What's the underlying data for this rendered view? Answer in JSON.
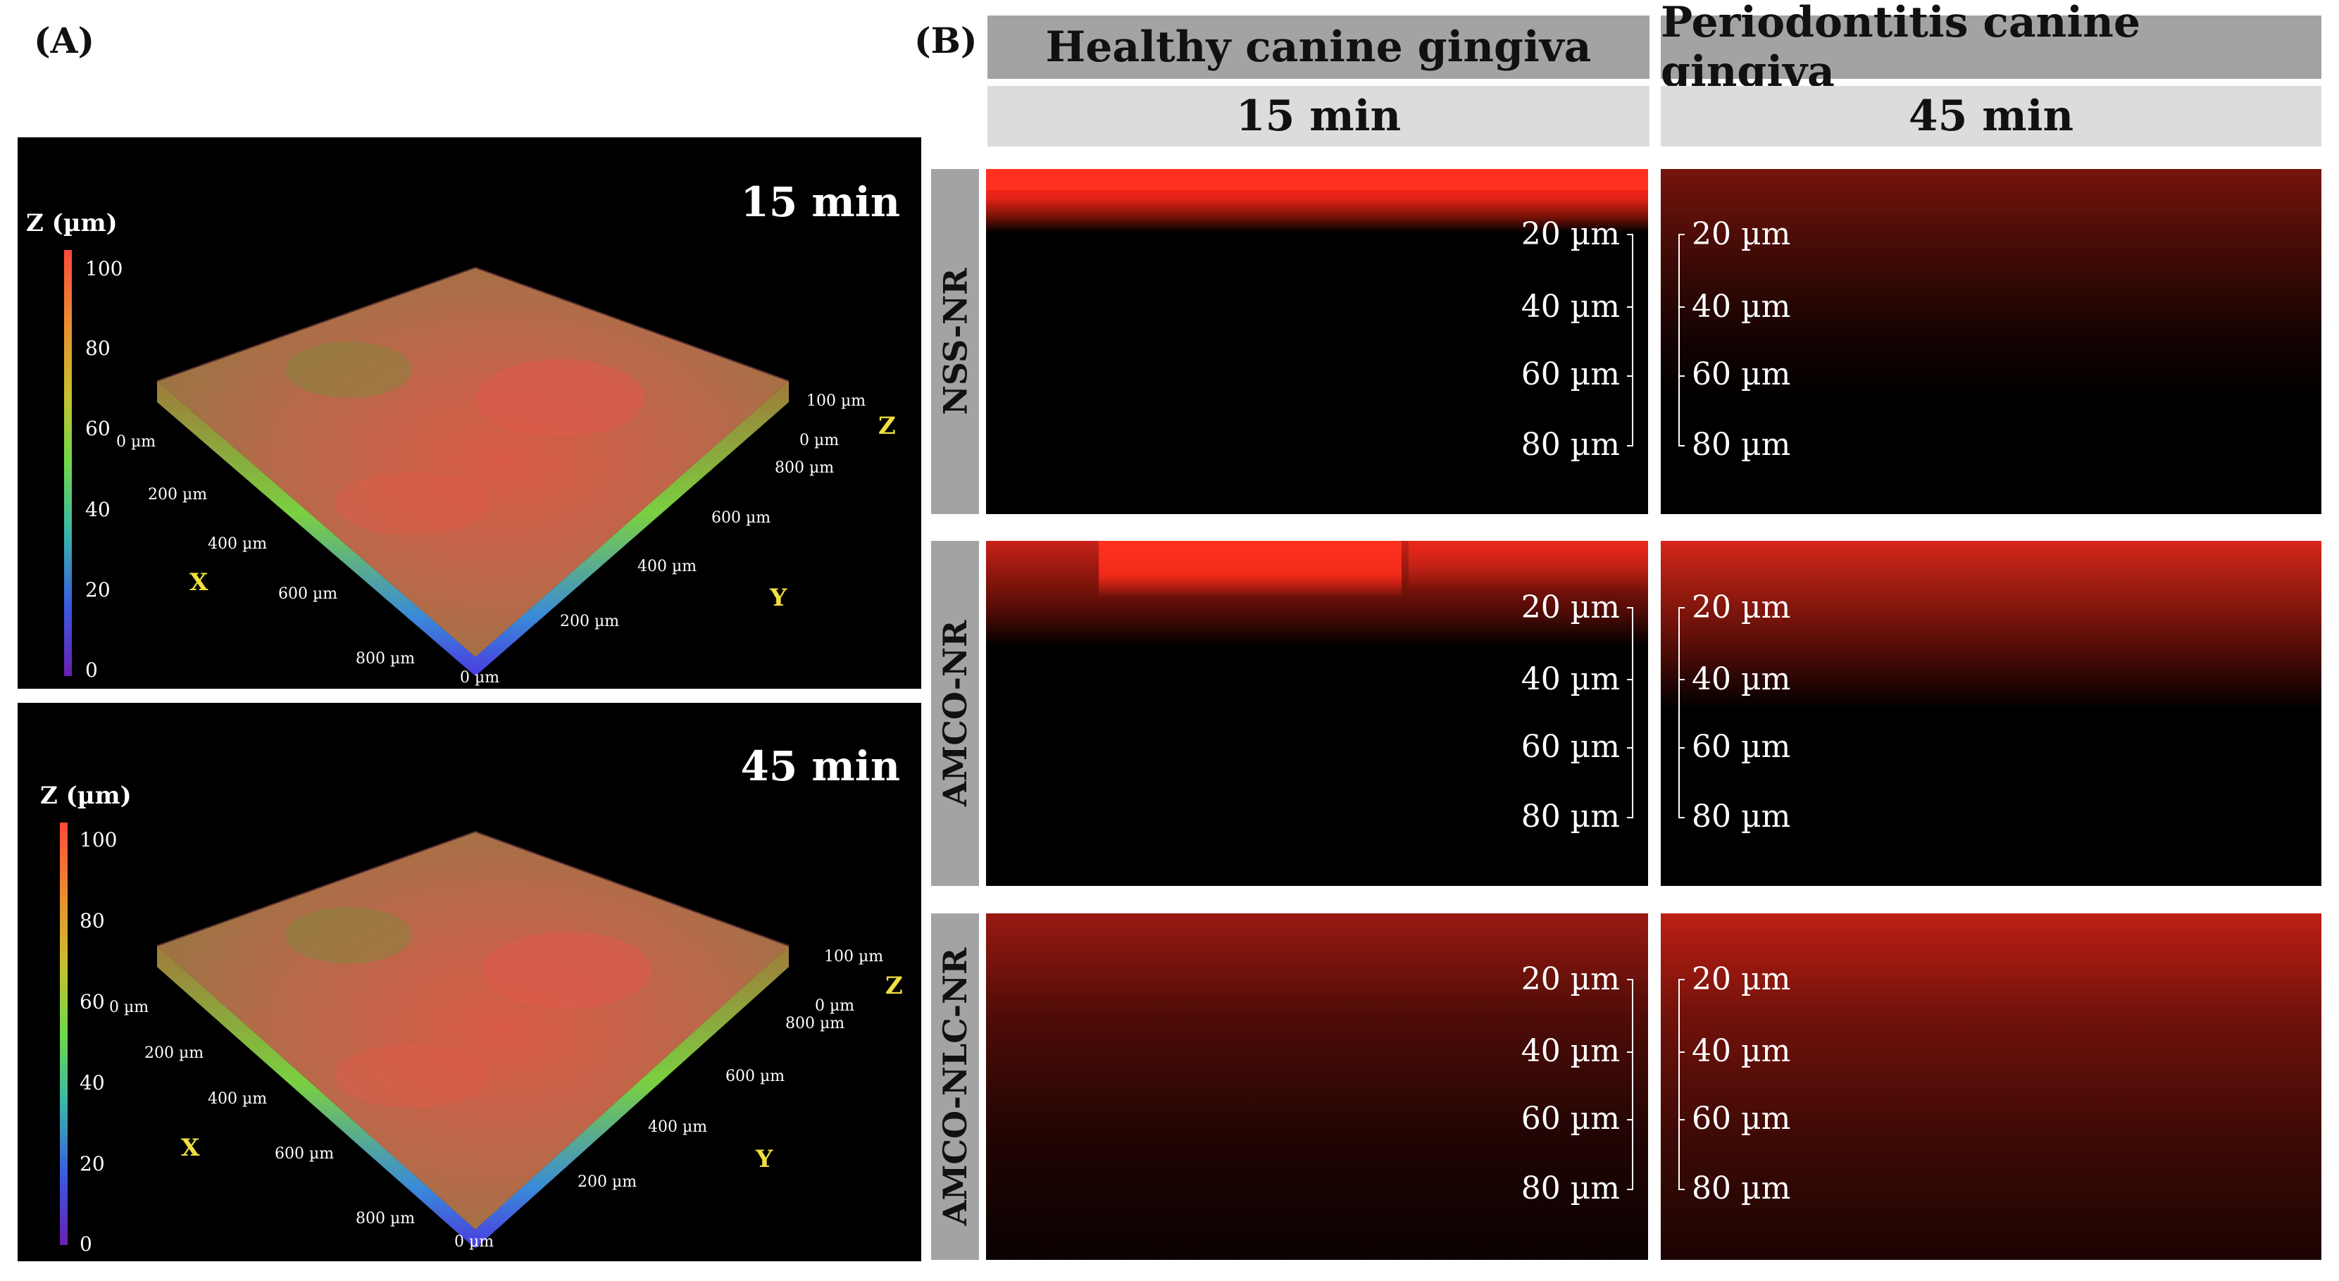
{
  "panelA": {
    "label": "(A)",
    "views": [
      {
        "time": "15 min",
        "colorbar_title": "Z (µm)",
        "colorbar_ticks": [
          "100",
          "80",
          "60",
          "40",
          "20",
          "0"
        ],
        "x_ticks": [
          "0 µm",
          "200 µm",
          "400 µm",
          "600 µm",
          "800 µm"
        ],
        "y_ticks": [
          "0 µm",
          "200 µm",
          "400 µm",
          "600 µm",
          "800 µm"
        ],
        "z_ticks": [
          "100 µm",
          "0 µm"
        ],
        "x_label": "X",
        "y_label": "Y",
        "z_label": "Z"
      },
      {
        "time": "45 min",
        "colorbar_title": "Z (µm)",
        "colorbar_ticks": [
          "100",
          "80",
          "60",
          "40",
          "20",
          "0"
        ],
        "x_ticks": [
          "0 µm",
          "200 µm",
          "400 µm",
          "600 µm",
          "800 µm"
        ],
        "y_ticks": [
          "0 µm",
          "200 µm",
          "400 µm",
          "600 µm",
          "800 µm"
        ],
        "z_ticks": [
          "100 µm",
          "0 µm"
        ],
        "x_label": "X",
        "y_label": "Y",
        "z_label": "Z"
      }
    ]
  },
  "panelB": {
    "label": "(B)",
    "columns": [
      {
        "tissue": "Healthy canine gingiva",
        "time": "15 min"
      },
      {
        "tissue": "Periodontitis canine gingiva",
        "time": "45 min"
      }
    ],
    "rows": [
      "NSS-NR",
      "AMCO-NR",
      "AMCO-NLC-NR"
    ],
    "depth_ticks": [
      "20 µm",
      "40 µm",
      "60 µm",
      "80 µm"
    ],
    "colors": {
      "fluorescence": "#ff2a1a",
      "background": "#000000",
      "header_dark": "#a3a3a3",
      "header_light": "#dcdcdc"
    }
  }
}
